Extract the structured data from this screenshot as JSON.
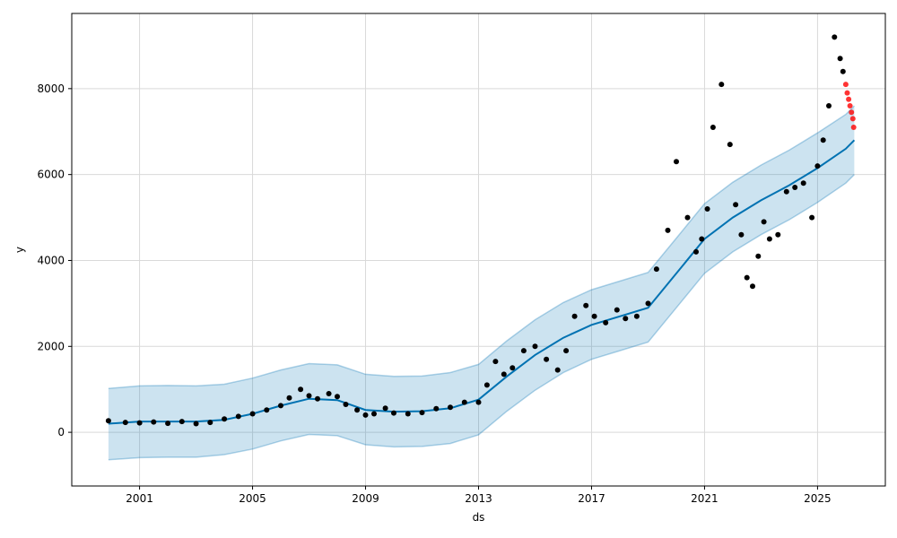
{
  "chart_data": {
    "type": "scatter",
    "title": "",
    "xlabel": "ds",
    "ylabel": "y",
    "xlim": [
      1998.6,
      2027.4
    ],
    "ylim": [
      -1250,
      9750
    ],
    "grid": true,
    "x_ticks": [
      {
        "value": 2001,
        "label": "2001"
      },
      {
        "value": 2005,
        "label": "2005"
      },
      {
        "value": 2009,
        "label": "2009"
      },
      {
        "value": 2013,
        "label": "2013"
      },
      {
        "value": 2017,
        "label": "2017"
      },
      {
        "value": 2021,
        "label": "2021"
      },
      {
        "value": 2025,
        "label": "2025"
      }
    ],
    "y_ticks": [
      {
        "value": 0,
        "label": "0"
      },
      {
        "value": 2000,
        "label": "2000"
      },
      {
        "value": 4000,
        "label": "4000"
      },
      {
        "value": 6000,
        "label": "6000"
      },
      {
        "value": 8000,
        "label": "8000"
      }
    ],
    "colors": {
      "observed": "#000000",
      "recent": "#ff0000",
      "forecast": "#0072B2",
      "band_fill": "#0072B2",
      "grid": "#d9d9d9"
    },
    "series": [
      {
        "role": "observed",
        "kind": "points",
        "x": [
          1999.9,
          2000.5,
          2001.0,
          2001.5,
          2002.0,
          2002.5,
          2003.0,
          2003.5,
          2004.0,
          2004.5,
          2005.0,
          2005.5,
          2006.0,
          2006.3,
          2006.7,
          2007.0,
          2007.3,
          2007.7,
          2008.0,
          2008.3,
          2008.7,
          2009.0,
          2009.3,
          2009.7,
          2010.0,
          2010.5,
          2011.0,
          2011.5,
          2012.0,
          2012.5,
          2013.0,
          2013.3,
          2013.6,
          2013.9,
          2014.2,
          2014.6,
          2015.0,
          2015.4,
          2015.8,
          2016.1,
          2016.4,
          2016.8,
          2017.1,
          2017.5,
          2017.9,
          2018.2,
          2018.6,
          2019.0,
          2019.3,
          2019.7,
          2020.0,
          2020.4,
          2020.7,
          2020.9,
          2021.1,
          2021.3,
          2021.6,
          2021.9,
          2022.1,
          2022.3,
          2022.5,
          2022.7,
          2022.9,
          2023.1,
          2023.3,
          2023.6,
          2023.9,
          2024.2,
          2024.5,
          2024.8,
          2025.0,
          2025.2,
          2025.4,
          2025.6,
          2025.8,
          2025.9
        ],
        "y": [
          270,
          230,
          220,
          240,
          210,
          250,
          200,
          230,
          310,
          370,
          430,
          520,
          620,
          800,
          1000,
          850,
          780,
          900,
          830,
          650,
          520,
          400,
          430,
          560,
          450,
          430,
          460,
          550,
          580,
          700,
          700,
          1100,
          1650,
          1350,
          1500,
          1900,
          2000,
          1700,
          1450,
          1900,
          2700,
          2950,
          2700,
          2550,
          2850,
          2650,
          2700,
          3000,
          3800,
          4700,
          6300,
          5000,
          4200,
          4500,
          5200,
          7100,
          8100,
          6700,
          5300,
          4600,
          3600,
          3400,
          4100,
          4900,
          4500,
          4600,
          5600,
          5700,
          5800,
          5000,
          6200,
          6800,
          7600,
          9200,
          8700,
          8400
        ]
      },
      {
        "role": "recent",
        "kind": "points",
        "x": [
          2026.0,
          2026.05,
          2026.1,
          2026.15,
          2026.2,
          2026.25,
          2026.28
        ],
        "y": [
          8100,
          7900,
          7750,
          7600,
          7450,
          7300,
          7100
        ]
      },
      {
        "role": "forecast",
        "kind": "line",
        "x": [
          1999.9,
          2001.0,
          2002.0,
          2003.0,
          2004.0,
          2005.0,
          2006.0,
          2007.0,
          2008.0,
          2009.0,
          2010.0,
          2011.0,
          2012.0,
          2013.0,
          2014.0,
          2015.0,
          2016.0,
          2017.0,
          2018.0,
          2019.0,
          2020.0,
          2021.0,
          2022.0,
          2023.0,
          2024.0,
          2025.0,
          2026.0,
          2026.3
        ],
        "y": [
          200,
          250,
          250,
          250,
          290,
          430,
          620,
          780,
          750,
          520,
          480,
          490,
          560,
          760,
          1300,
          1800,
          2200,
          2500,
          2700,
          2900,
          3700,
          4500,
          5000,
          5400,
          5750,
          6150,
          6600,
          6800
        ]
      },
      {
        "role": "band",
        "kind": "area",
        "x": [
          1999.9,
          2001.0,
          2002.0,
          2003.0,
          2004.0,
          2005.0,
          2006.0,
          2007.0,
          2008.0,
          2009.0,
          2010.0,
          2011.0,
          2012.0,
          2013.0,
          2014.0,
          2015.0,
          2016.0,
          2017.0,
          2018.0,
          2019.0,
          2020.0,
          2021.0,
          2022.0,
          2023.0,
          2024.0,
          2025.0,
          2026.0,
          2026.3
        ],
        "lower": [
          -640,
          -590,
          -580,
          -580,
          -520,
          -390,
          -200,
          -50,
          -80,
          -290,
          -340,
          -330,
          -260,
          -60,
          490,
          980,
          1390,
          1700,
          1900,
          2100,
          2900,
          3700,
          4200,
          4600,
          4950,
          5350,
          5800,
          6000
        ],
        "upper": [
          1020,
          1080,
          1090,
          1080,
          1120,
          1260,
          1450,
          1600,
          1570,
          1350,
          1300,
          1310,
          1390,
          1580,
          2130,
          2620,
          3020,
          3320,
          3520,
          3720,
          4520,
          5320,
          5820,
          6220,
          6570,
          6970,
          7400,
          7600
        ]
      }
    ]
  }
}
